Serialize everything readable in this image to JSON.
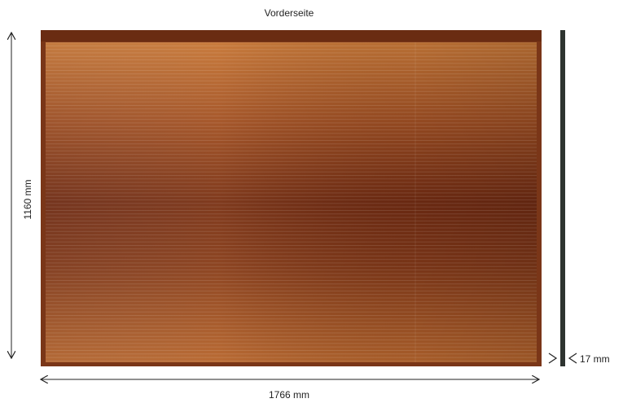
{
  "header": {
    "title": "Vorderseite"
  },
  "dimensions": {
    "height": "1160 mm",
    "width": "1766 mm",
    "thickness": "17 mm"
  }
}
